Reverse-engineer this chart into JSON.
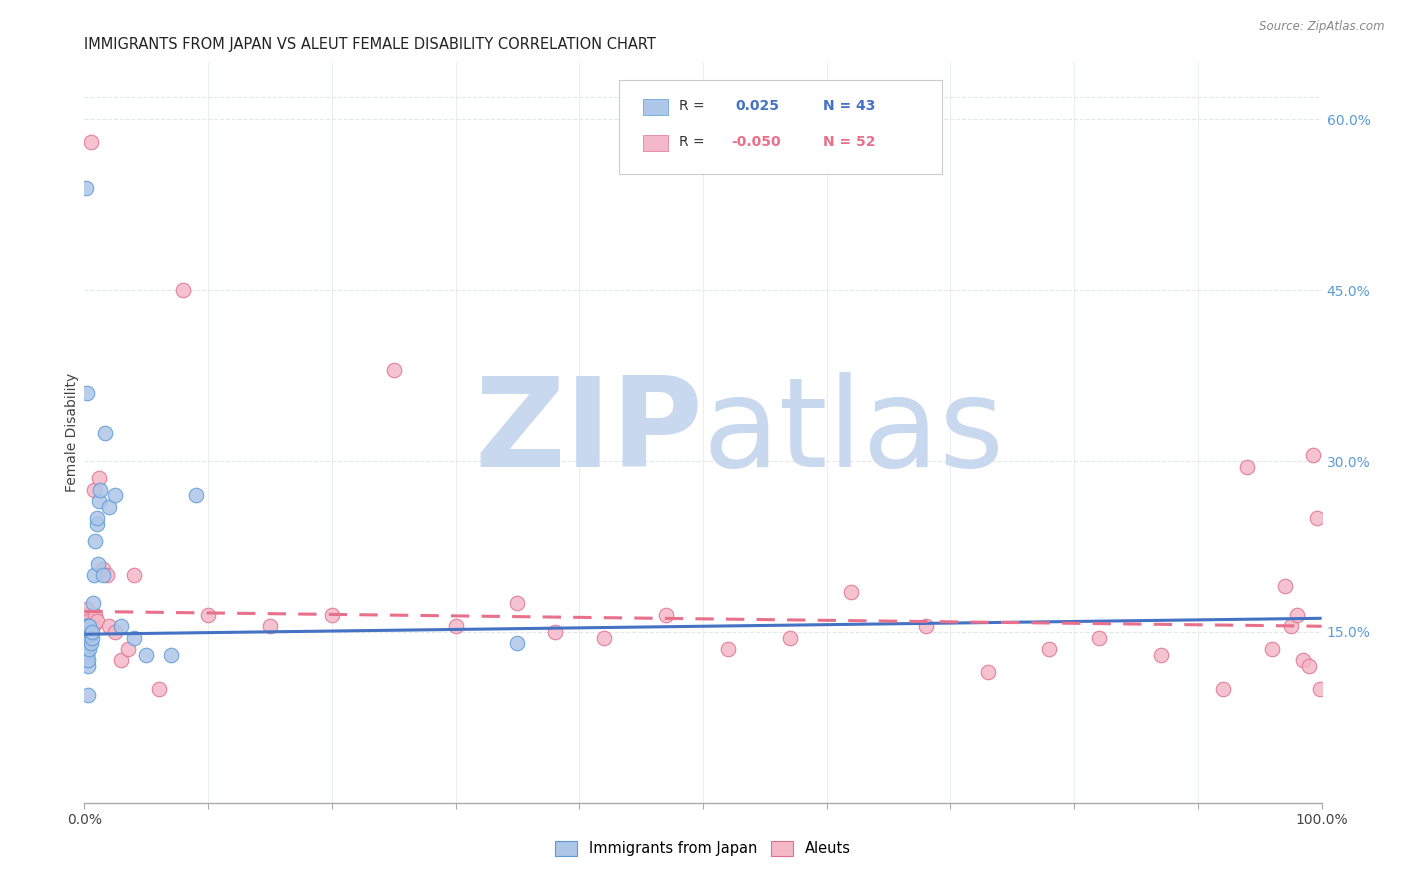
{
  "title": "IMMIGRANTS FROM JAPAN VS ALEUT FEMALE DISABILITY CORRELATION CHART",
  "source": "Source: ZipAtlas.com",
  "ylabel": "Female Disability",
  "right_yticks": [
    "60.0%",
    "45.0%",
    "30.0%",
    "15.0%"
  ],
  "right_ytick_vals": [
    0.6,
    0.45,
    0.3,
    0.15
  ],
  "legend_label_blue": "Immigrants from Japan",
  "legend_label_pink": "Aleuts",
  "blue_fill_color": "#aec6e8",
  "blue_edge_color": "#5b9bd5",
  "pink_fill_color": "#f4b8c8",
  "pink_edge_color": "#e07090",
  "blue_line_color": "#4472c4",
  "pink_line_color": "#e8708a",
  "watermark_zip_color": "#c8d8ee",
  "watermark_atlas_color": "#c8d8ee",
  "background_color": "#ffffff",
  "right_tick_color": "#5b9bd5",
  "grid_color": "#dde8f0",
  "xlim": [
    0.0,
    1.0
  ],
  "ylim": [
    0.0,
    0.65
  ],
  "hline_y_vals": [
    0.15,
    0.3,
    0.45,
    0.6
  ],
  "blue_trend_y_start": 0.148,
  "blue_trend_y_end": 0.162,
  "pink_trend_y_start": 0.168,
  "pink_trend_y_end": 0.155,
  "blue_scatter_x": [
    0.001,
    0.001,
    0.001,
    0.001,
    0.001,
    0.001,
    0.002,
    0.002,
    0.002,
    0.002,
    0.002,
    0.003,
    0.003,
    0.003,
    0.003,
    0.004,
    0.004,
    0.004,
    0.005,
    0.005,
    0.006,
    0.006,
    0.007,
    0.008,
    0.009,
    0.01,
    0.01,
    0.011,
    0.012,
    0.013,
    0.015,
    0.017,
    0.02,
    0.025,
    0.03,
    0.04,
    0.05,
    0.07,
    0.09,
    0.35,
    0.001,
    0.002,
    0.003
  ],
  "blue_scatter_y": [
    0.13,
    0.135,
    0.14,
    0.145,
    0.15,
    0.155,
    0.125,
    0.13,
    0.135,
    0.145,
    0.155,
    0.12,
    0.125,
    0.14,
    0.155,
    0.135,
    0.145,
    0.155,
    0.14,
    0.148,
    0.145,
    0.15,
    0.175,
    0.2,
    0.23,
    0.245,
    0.25,
    0.21,
    0.265,
    0.275,
    0.2,
    0.325,
    0.26,
    0.27,
    0.155,
    0.145,
    0.13,
    0.13,
    0.27,
    0.14,
    0.54,
    0.36,
    0.095
  ],
  "pink_scatter_x": [
    0.001,
    0.001,
    0.001,
    0.002,
    0.002,
    0.003,
    0.003,
    0.004,
    0.005,
    0.006,
    0.007,
    0.008,
    0.009,
    0.01,
    0.012,
    0.015,
    0.018,
    0.02,
    0.025,
    0.03,
    0.035,
    0.04,
    0.06,
    0.08,
    0.1,
    0.15,
    0.2,
    0.25,
    0.3,
    0.35,
    0.38,
    0.42,
    0.47,
    0.52,
    0.57,
    0.62,
    0.68,
    0.73,
    0.78,
    0.82,
    0.87,
    0.92,
    0.94,
    0.96,
    0.97,
    0.975,
    0.98,
    0.985,
    0.99,
    0.993,
    0.996,
    0.999
  ],
  "pink_scatter_y": [
    0.155,
    0.16,
    0.165,
    0.155,
    0.17,
    0.155,
    0.16,
    0.15,
    0.58,
    0.155,
    0.155,
    0.275,
    0.165,
    0.16,
    0.285,
    0.205,
    0.2,
    0.155,
    0.15,
    0.125,
    0.135,
    0.2,
    0.1,
    0.45,
    0.165,
    0.155,
    0.165,
    0.38,
    0.155,
    0.175,
    0.15,
    0.145,
    0.165,
    0.135,
    0.145,
    0.185,
    0.155,
    0.115,
    0.135,
    0.145,
    0.13,
    0.1,
    0.295,
    0.135,
    0.19,
    0.155,
    0.165,
    0.125,
    0.12,
    0.305,
    0.25,
    0.1
  ]
}
